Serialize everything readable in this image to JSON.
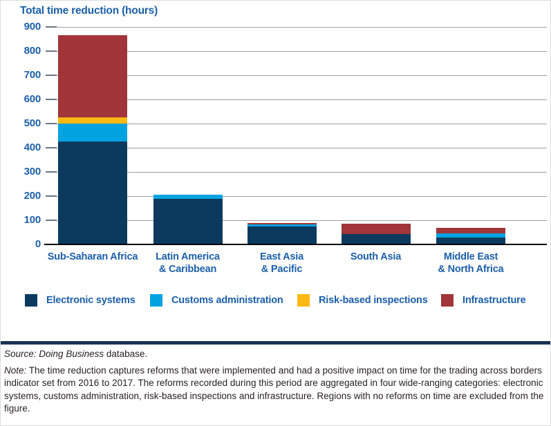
{
  "chart_data": {
    "type": "bar",
    "stacked": true,
    "title": "Total time reduction (hours)",
    "categories": [
      "Sub-Saharan Africa",
      "Latin America\n& Caribbean",
      "East Asia\n& Pacific",
      "South Asia",
      "Middle East\n& North Africa"
    ],
    "series": [
      {
        "name": "Electronic systems",
        "color": "#0c3a5e",
        "values": [
          425,
          190,
          75,
          43,
          28
        ]
      },
      {
        "name": "Customs administration",
        "color": "#00a3e0",
        "values": [
          75,
          15,
          7,
          0,
          19
        ]
      },
      {
        "name": "Risk-based inspections",
        "color": "#fdb813",
        "values": [
          25,
          0,
          0,
          0,
          0
        ]
      },
      {
        "name": "Infrastructure",
        "color": "#a13539",
        "values": [
          340,
          0,
          8,
          44,
          21
        ]
      }
    ],
    "totals": [
      865,
      205,
      90,
      87,
      68
    ],
    "ylim": [
      0,
      900
    ],
    "yticks": [
      0,
      100,
      200,
      300,
      400,
      500,
      600,
      700,
      800,
      900
    ],
    "grid": "horizontal",
    "legend_position": "bottom"
  },
  "colors": {
    "text_blue": "#1c5fa8",
    "grid": "#9e9e9e",
    "axis": "#000000",
    "rule": "#1a3350",
    "footer_text": "#231f20"
  },
  "footer": {
    "source_label": "Source:",
    "source_name": "Doing Business",
    "source_suffix": " database.",
    "note_label": "Note:",
    "note_text": " The time reduction captures reforms that were implemented and had a positive impact on time for the trading across borders indicator set from 2016 to 2017. The reforms recorded during this period are aggregated in four wide-ranging categories: electronic systems, customs administration, risk-based inspections and infrastructure. Regions with no reforms on time are excluded from the figure."
  }
}
